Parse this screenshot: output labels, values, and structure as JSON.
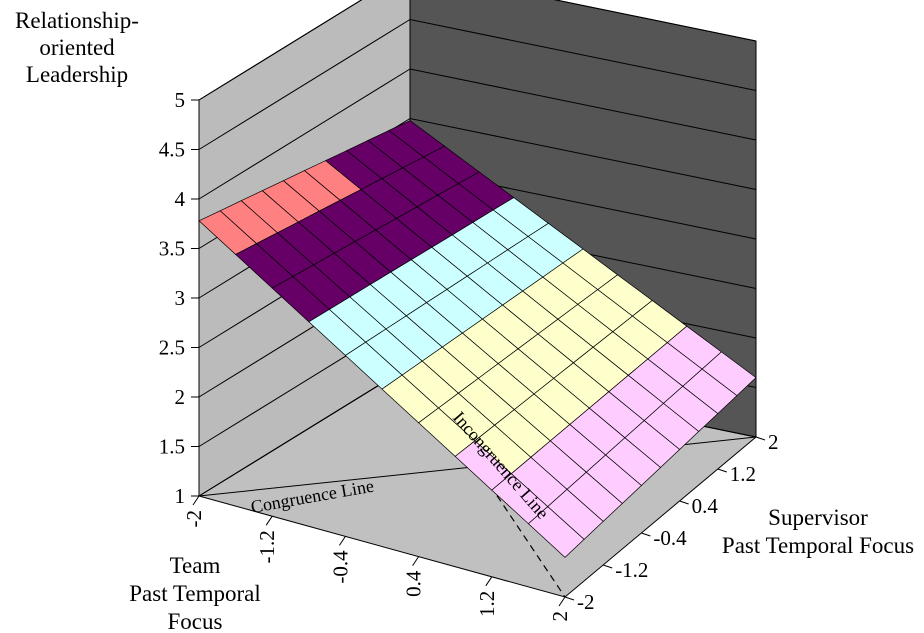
{
  "chart_data": {
    "type": "surface3d",
    "z_axis": {
      "label": [
        "Relationship-",
        "oriented",
        "Leadership"
      ],
      "ticks": [
        "1",
        "1.5",
        "2",
        "2.5",
        "3",
        "3.5",
        "4",
        "4.5",
        "5"
      ],
      "range": [
        1,
        5
      ]
    },
    "team_axis": {
      "label": [
        "Team",
        "Past Temporal",
        "Focus"
      ],
      "ticks": [
        "-2",
        "-1.2",
        "-0.4",
        "0.4",
        "1.2",
        "2"
      ],
      "range": [
        -2,
        2
      ]
    },
    "supervisor_axis": {
      "label": [
        "Supervisor",
        "Past Temporal Focus"
      ],
      "ticks": [
        "-2",
        "-1.2",
        "-0.4",
        "0.4",
        "1.2",
        "2"
      ],
      "range": [
        -2,
        2
      ]
    },
    "annotations": {
      "congruence": "Congruence Line",
      "incongruence": "Incongruence Line"
    },
    "band_colors": [
      "#9999ff",
      "#ffccff",
      "#ffffcc",
      "#ccffff",
      "#660066",
      "#ff8080"
    ],
    "band_bounds": [
      1,
      1.5,
      2,
      2.5,
      3,
      3.5,
      4
    ],
    "walls": {
      "back": "#555555",
      "side": "#bbbbbb",
      "floor": "#c0c0c0"
    }
  }
}
